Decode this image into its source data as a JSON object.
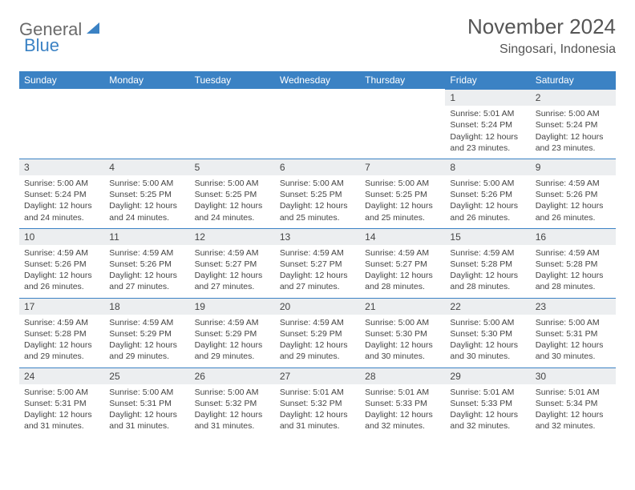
{
  "logo": {
    "text1": "General",
    "text2": "Blue",
    "text1_color": "#6b6b6b",
    "text2_color": "#3b82c4",
    "icon_color": "#3b82c4"
  },
  "header": {
    "month": "November 2024",
    "location": "Singosari, Indonesia"
  },
  "colors": {
    "header_bg": "#3b82c4",
    "header_text": "#ffffff",
    "daynum_bg": "#eceef0",
    "border": "#3b82c4",
    "text": "#444444"
  },
  "weekdays": [
    "Sunday",
    "Monday",
    "Tuesday",
    "Wednesday",
    "Thursday",
    "Friday",
    "Saturday"
  ],
  "weeks": [
    [
      null,
      null,
      null,
      null,
      null,
      {
        "n": "1",
        "sunrise": "Sunrise: 5:01 AM",
        "sunset": "Sunset: 5:24 PM",
        "daylight": "Daylight: 12 hours and 23 minutes."
      },
      {
        "n": "2",
        "sunrise": "Sunrise: 5:00 AM",
        "sunset": "Sunset: 5:24 PM",
        "daylight": "Daylight: 12 hours and 23 minutes."
      }
    ],
    [
      {
        "n": "3",
        "sunrise": "Sunrise: 5:00 AM",
        "sunset": "Sunset: 5:24 PM",
        "daylight": "Daylight: 12 hours and 24 minutes."
      },
      {
        "n": "4",
        "sunrise": "Sunrise: 5:00 AM",
        "sunset": "Sunset: 5:25 PM",
        "daylight": "Daylight: 12 hours and 24 minutes."
      },
      {
        "n": "5",
        "sunrise": "Sunrise: 5:00 AM",
        "sunset": "Sunset: 5:25 PM",
        "daylight": "Daylight: 12 hours and 24 minutes."
      },
      {
        "n": "6",
        "sunrise": "Sunrise: 5:00 AM",
        "sunset": "Sunset: 5:25 PM",
        "daylight": "Daylight: 12 hours and 25 minutes."
      },
      {
        "n": "7",
        "sunrise": "Sunrise: 5:00 AM",
        "sunset": "Sunset: 5:25 PM",
        "daylight": "Daylight: 12 hours and 25 minutes."
      },
      {
        "n": "8",
        "sunrise": "Sunrise: 5:00 AM",
        "sunset": "Sunset: 5:26 PM",
        "daylight": "Daylight: 12 hours and 26 minutes."
      },
      {
        "n": "9",
        "sunrise": "Sunrise: 4:59 AM",
        "sunset": "Sunset: 5:26 PM",
        "daylight": "Daylight: 12 hours and 26 minutes."
      }
    ],
    [
      {
        "n": "10",
        "sunrise": "Sunrise: 4:59 AM",
        "sunset": "Sunset: 5:26 PM",
        "daylight": "Daylight: 12 hours and 26 minutes."
      },
      {
        "n": "11",
        "sunrise": "Sunrise: 4:59 AM",
        "sunset": "Sunset: 5:26 PM",
        "daylight": "Daylight: 12 hours and 27 minutes."
      },
      {
        "n": "12",
        "sunrise": "Sunrise: 4:59 AM",
        "sunset": "Sunset: 5:27 PM",
        "daylight": "Daylight: 12 hours and 27 minutes."
      },
      {
        "n": "13",
        "sunrise": "Sunrise: 4:59 AM",
        "sunset": "Sunset: 5:27 PM",
        "daylight": "Daylight: 12 hours and 27 minutes."
      },
      {
        "n": "14",
        "sunrise": "Sunrise: 4:59 AM",
        "sunset": "Sunset: 5:27 PM",
        "daylight": "Daylight: 12 hours and 28 minutes."
      },
      {
        "n": "15",
        "sunrise": "Sunrise: 4:59 AM",
        "sunset": "Sunset: 5:28 PM",
        "daylight": "Daylight: 12 hours and 28 minutes."
      },
      {
        "n": "16",
        "sunrise": "Sunrise: 4:59 AM",
        "sunset": "Sunset: 5:28 PM",
        "daylight": "Daylight: 12 hours and 28 minutes."
      }
    ],
    [
      {
        "n": "17",
        "sunrise": "Sunrise: 4:59 AM",
        "sunset": "Sunset: 5:28 PM",
        "daylight": "Daylight: 12 hours and 29 minutes."
      },
      {
        "n": "18",
        "sunrise": "Sunrise: 4:59 AM",
        "sunset": "Sunset: 5:29 PM",
        "daylight": "Daylight: 12 hours and 29 minutes."
      },
      {
        "n": "19",
        "sunrise": "Sunrise: 4:59 AM",
        "sunset": "Sunset: 5:29 PM",
        "daylight": "Daylight: 12 hours and 29 minutes."
      },
      {
        "n": "20",
        "sunrise": "Sunrise: 4:59 AM",
        "sunset": "Sunset: 5:29 PM",
        "daylight": "Daylight: 12 hours and 29 minutes."
      },
      {
        "n": "21",
        "sunrise": "Sunrise: 5:00 AM",
        "sunset": "Sunset: 5:30 PM",
        "daylight": "Daylight: 12 hours and 30 minutes."
      },
      {
        "n": "22",
        "sunrise": "Sunrise: 5:00 AM",
        "sunset": "Sunset: 5:30 PM",
        "daylight": "Daylight: 12 hours and 30 minutes."
      },
      {
        "n": "23",
        "sunrise": "Sunrise: 5:00 AM",
        "sunset": "Sunset: 5:31 PM",
        "daylight": "Daylight: 12 hours and 30 minutes."
      }
    ],
    [
      {
        "n": "24",
        "sunrise": "Sunrise: 5:00 AM",
        "sunset": "Sunset: 5:31 PM",
        "daylight": "Daylight: 12 hours and 31 minutes."
      },
      {
        "n": "25",
        "sunrise": "Sunrise: 5:00 AM",
        "sunset": "Sunset: 5:31 PM",
        "daylight": "Daylight: 12 hours and 31 minutes."
      },
      {
        "n": "26",
        "sunrise": "Sunrise: 5:00 AM",
        "sunset": "Sunset: 5:32 PM",
        "daylight": "Daylight: 12 hours and 31 minutes."
      },
      {
        "n": "27",
        "sunrise": "Sunrise: 5:01 AM",
        "sunset": "Sunset: 5:32 PM",
        "daylight": "Daylight: 12 hours and 31 minutes."
      },
      {
        "n": "28",
        "sunrise": "Sunrise: 5:01 AM",
        "sunset": "Sunset: 5:33 PM",
        "daylight": "Daylight: 12 hours and 32 minutes."
      },
      {
        "n": "29",
        "sunrise": "Sunrise: 5:01 AM",
        "sunset": "Sunset: 5:33 PM",
        "daylight": "Daylight: 12 hours and 32 minutes."
      },
      {
        "n": "30",
        "sunrise": "Sunrise: 5:01 AM",
        "sunset": "Sunset: 5:34 PM",
        "daylight": "Daylight: 12 hours and 32 minutes."
      }
    ]
  ]
}
